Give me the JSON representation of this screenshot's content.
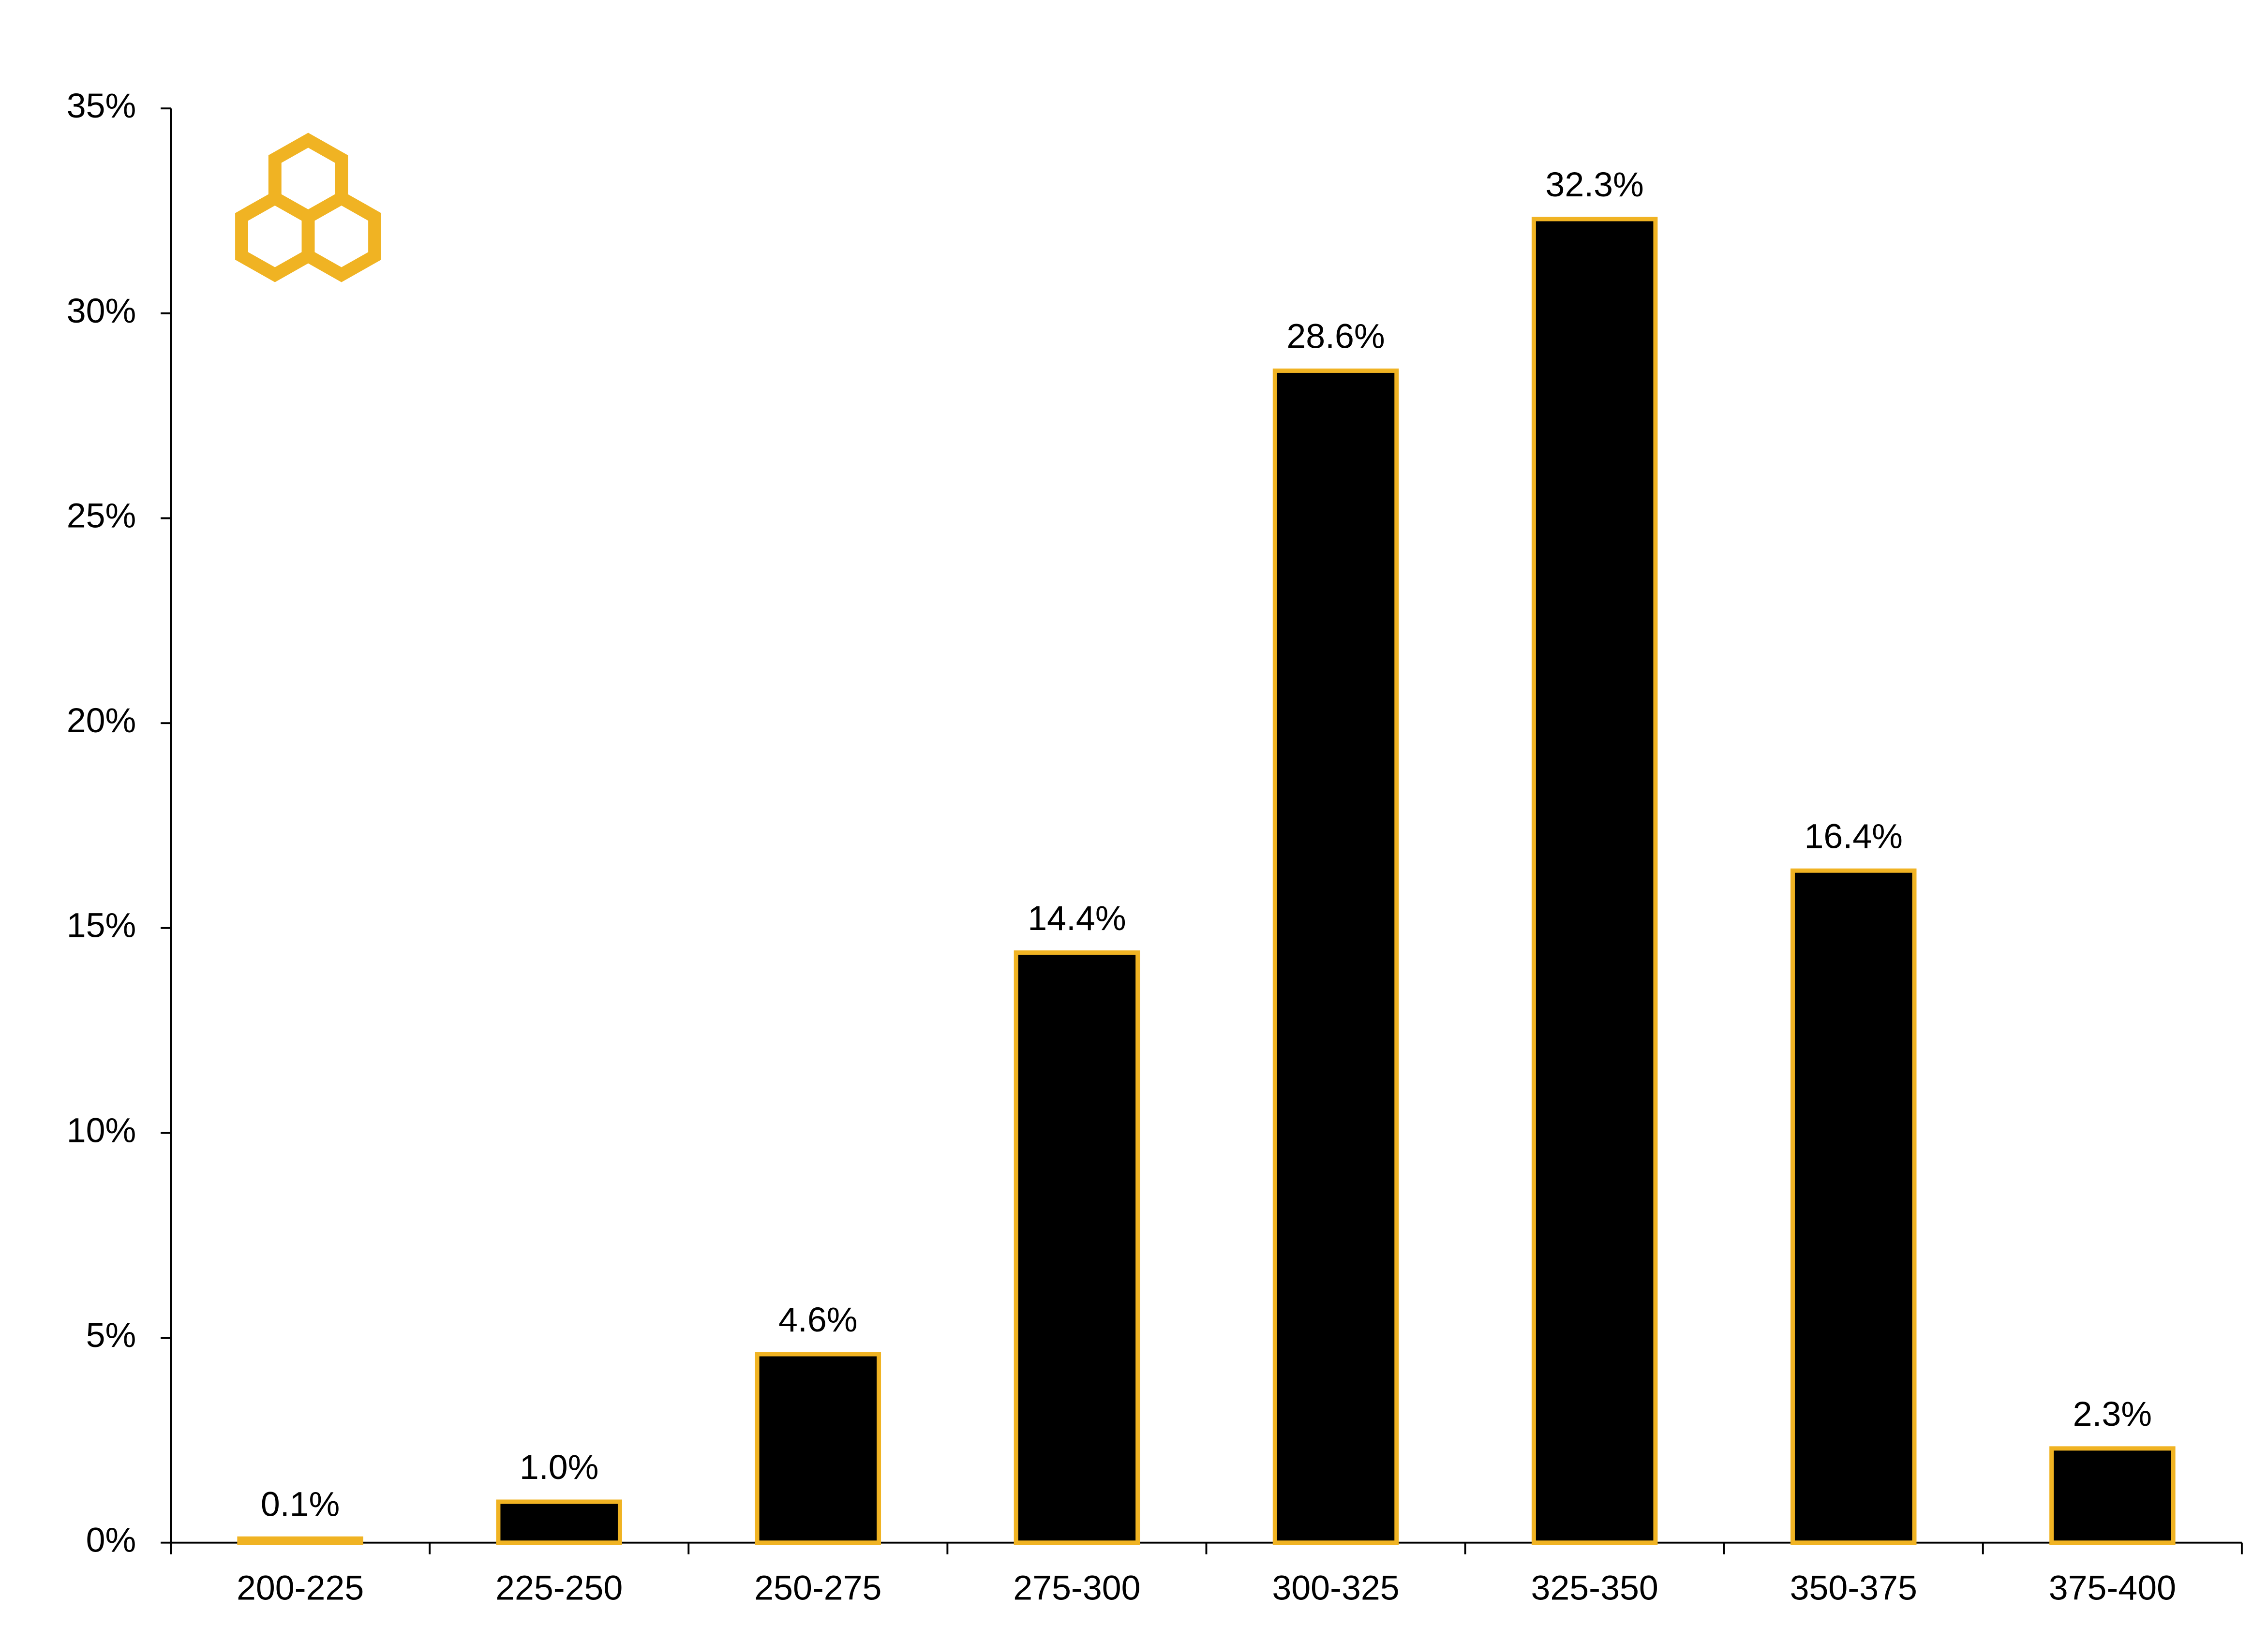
{
  "chart_data": {
    "type": "bar",
    "categories": [
      "200-225",
      "225-250",
      "250-275",
      "275-300",
      "300-325",
      "325-350",
      "350-375",
      "375-400"
    ],
    "values": [
      0.1,
      1.0,
      4.6,
      14.4,
      28.6,
      32.3,
      16.4,
      2.3
    ],
    "value_labels": [
      "0.1%",
      "1.0%",
      "4.6%",
      "14.4%",
      "28.6%",
      "32.3%",
      "16.4%",
      "2.3%"
    ],
    "color": "#000000",
    "edge_color": "#f0b323",
    "ylim": [
      0,
      35
    ],
    "yticks": [
      {
        "value": 0,
        "label": "0%"
      },
      {
        "value": 5,
        "label": "5%"
      },
      {
        "value": 10,
        "label": "10%"
      },
      {
        "value": 15,
        "label": "15%"
      },
      {
        "value": 20,
        "label": "20%"
      },
      {
        "value": 25,
        "label": "25%"
      },
      {
        "value": 30,
        "label": "30%"
      },
      {
        "value": 35,
        "label": "35%"
      }
    ],
    "grid": false
  }
}
